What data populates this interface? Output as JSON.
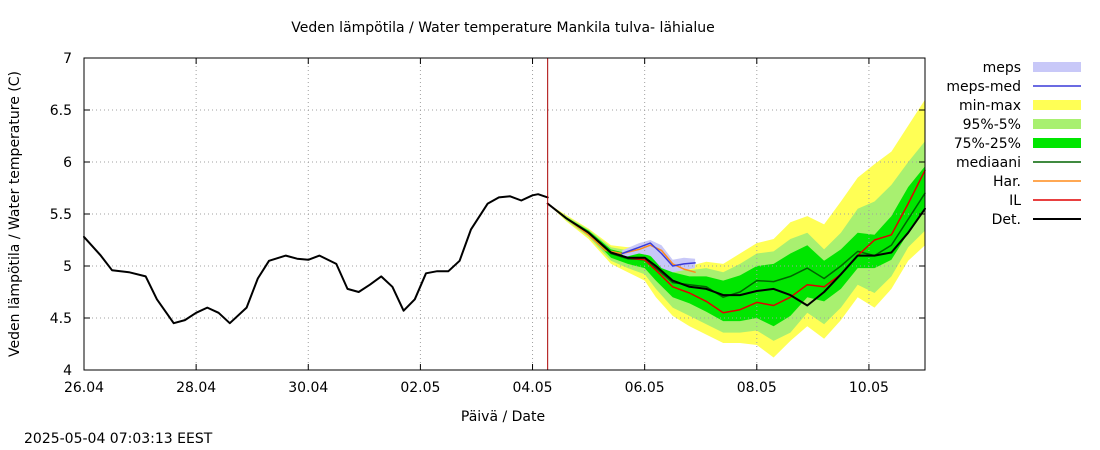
{
  "timestamp": "2025-05-04 07:03:13 EEST",
  "chart_data": {
    "type": "area",
    "title": "Veden lämpötila / Water temperature Mankila tulva- lähialue",
    "xlabel": "Päivä / Date",
    "ylabel": "Veden lämpötila / Water temperature (C)",
    "xlim": [
      0,
      15
    ],
    "ylim": [
      4,
      7
    ],
    "grid": true,
    "legend_position": "right",
    "x_ticks": [
      {
        "x": 0,
        "label": "26.04"
      },
      {
        "x": 2,
        "label": "28.04"
      },
      {
        "x": 4,
        "label": "30.04"
      },
      {
        "x": 6,
        "label": "02.05"
      },
      {
        "x": 8,
        "label": "04.05"
      },
      {
        "x": 10,
        "label": "06.05"
      },
      {
        "x": 12,
        "label": "08.05"
      },
      {
        "x": 14,
        "label": "10.05"
      }
    ],
    "y_ticks": [
      {
        "y": 4,
        "label": "4"
      },
      {
        "y": 4.5,
        "label": "4.5"
      },
      {
        "y": 5,
        "label": "5"
      },
      {
        "y": 5.5,
        "label": "5.5"
      },
      {
        "y": 6,
        "label": "6"
      },
      {
        "y": 6.5,
        "label": "6.5"
      },
      {
        "y": 7,
        "label": "7"
      }
    ],
    "now_line_x": 8.27,
    "colors": {
      "meps": "#c8c8f8",
      "meps_med": "#3a3ad8",
      "min_max": "#ffff55",
      "p95_5": "#a8f070",
      "p75_25": "#00e600",
      "mediaani": "#006400",
      "har": "#ff8c1a",
      "il": "#e00000",
      "det": "#000000",
      "now_line": "#aa0000",
      "grid": "#a0a0a0"
    },
    "legend": [
      {
        "key": "meps",
        "label": "meps",
        "style": "band"
      },
      {
        "key": "meps_med",
        "label": "meps-med",
        "style": "line"
      },
      {
        "key": "min_max",
        "label": "min-max",
        "style": "band"
      },
      {
        "key": "p95_5",
        "label": "95%-5%",
        "style": "band"
      },
      {
        "key": "p75_25",
        "label": "75%-25%",
        "style": "band"
      },
      {
        "key": "mediaani",
        "label": "mediaani",
        "style": "line"
      },
      {
        "key": "har",
        "label": "Har.",
        "style": "line"
      },
      {
        "key": "il",
        "label": "IL",
        "style": "line"
      },
      {
        "key": "det",
        "label": "Det.",
        "style": "line"
      }
    ],
    "series": {
      "observed": {
        "x": [
          0,
          0.3,
          0.5,
          0.8,
          1.1,
          1.3,
          1.6,
          1.8,
          2.0,
          2.2,
          2.4,
          2.6,
          2.9,
          3.1,
          3.3,
          3.6,
          3.8,
          4.0,
          4.2,
          4.5,
          4.7,
          4.9,
          5.1,
          5.3,
          5.5,
          5.7,
          5.9,
          6.1,
          6.3,
          6.5,
          6.7,
          6.9,
          7.2,
          7.4,
          7.6,
          7.8,
          8.0,
          8.1,
          8.27
        ],
        "y": [
          5.28,
          5.1,
          4.96,
          4.94,
          4.9,
          4.68,
          4.45,
          4.48,
          4.55,
          4.6,
          4.55,
          4.45,
          4.6,
          4.88,
          5.05,
          5.1,
          5.07,
          5.06,
          5.1,
          5.02,
          4.78,
          4.75,
          4.82,
          4.9,
          4.8,
          4.57,
          4.68,
          4.93,
          4.95,
          4.95,
          5.05,
          5.35,
          5.6,
          5.66,
          5.67,
          5.63,
          5.68,
          5.69,
          5.66
        ]
      },
      "det": {
        "x": [
          8.27,
          8.6,
          9.0,
          9.4,
          9.7,
          10.0,
          10.2,
          10.5,
          10.8,
          11.1,
          11.4,
          11.7,
          12.0,
          12.3,
          12.6,
          12.9,
          13.2,
          13.5,
          13.8,
          14.1,
          14.4,
          14.7,
          15.0
        ],
        "y": [
          5.6,
          5.46,
          5.32,
          5.13,
          5.08,
          5.08,
          5.0,
          4.86,
          4.8,
          4.78,
          4.72,
          4.72,
          4.76,
          4.78,
          4.72,
          4.62,
          4.75,
          4.92,
          5.1,
          5.1,
          5.13,
          5.32,
          5.55
        ]
      },
      "mediaani": {
        "x": [
          8.27,
          8.6,
          9.0,
          9.4,
          9.7,
          10.0,
          10.2,
          10.5,
          10.8,
          11.1,
          11.4,
          11.7,
          12.0,
          12.3,
          12.6,
          12.9,
          13.2,
          13.5,
          13.8,
          14.1,
          14.4,
          14.7,
          15.0
        ],
        "y": [
          5.6,
          5.46,
          5.32,
          5.12,
          5.07,
          5.06,
          4.98,
          4.84,
          4.82,
          4.8,
          4.7,
          4.75,
          4.86,
          4.85,
          4.9,
          4.98,
          4.88,
          5.0,
          5.14,
          5.1,
          5.2,
          5.45,
          5.7
        ]
      },
      "il": {
        "x": [
          8.27,
          8.6,
          9.0,
          9.4,
          9.7,
          10.0,
          10.2,
          10.5,
          10.8,
          11.1,
          11.4,
          11.7,
          12.0,
          12.3,
          12.6,
          12.9,
          13.2,
          13.5,
          13.8,
          14.1,
          14.4,
          14.7,
          15.0
        ],
        "y": [
          5.6,
          5.46,
          5.32,
          5.13,
          5.08,
          5.06,
          4.96,
          4.8,
          4.74,
          4.66,
          4.55,
          4.58,
          4.65,
          4.62,
          4.7,
          4.82,
          4.8,
          4.92,
          5.1,
          5.25,
          5.3,
          5.6,
          5.92
        ]
      },
      "har": {
        "x": [
          8.27,
          8.6,
          9.0,
          9.3,
          9.6,
          9.9,
          10.1,
          10.3,
          10.5,
          10.7,
          10.9
        ],
        "y": [
          5.6,
          5.46,
          5.3,
          5.15,
          5.12,
          5.16,
          5.2,
          5.15,
          5.02,
          4.97,
          4.94
        ]
      },
      "meps_med": {
        "x": [
          9.6,
          9.9,
          10.1,
          10.3,
          10.5,
          10.7,
          10.9
        ],
        "y": [
          5.12,
          5.18,
          5.22,
          5.12,
          5.0,
          5.02,
          5.03
        ]
      },
      "meps_band": {
        "x": [
          9.6,
          9.9,
          10.1,
          10.3,
          10.5,
          10.7,
          10.9
        ],
        "low": [
          5.08,
          5.12,
          5.1,
          4.98,
          4.94,
          4.96,
          4.98
        ],
        "high": [
          5.15,
          5.22,
          5.25,
          5.2,
          5.06,
          5.08,
          5.07
        ]
      },
      "p75_25_band": {
        "x": [
          8.27,
          8.6,
          9.0,
          9.4,
          9.7,
          10.0,
          10.2,
          10.5,
          10.8,
          11.1,
          11.4,
          11.7,
          12.0,
          12.3,
          12.6,
          12.9,
          13.2,
          13.5,
          13.8,
          14.1,
          14.4,
          14.7,
          15.0
        ],
        "low": [
          5.6,
          5.45,
          5.3,
          5.08,
          5.02,
          4.98,
          4.86,
          4.7,
          4.64,
          4.56,
          4.47,
          4.47,
          4.5,
          4.42,
          4.52,
          4.7,
          4.66,
          4.78,
          4.98,
          4.98,
          5.06,
          5.32,
          5.55
        ],
        "high": [
          5.6,
          5.47,
          5.34,
          5.16,
          5.12,
          5.12,
          5.07,
          4.94,
          4.9,
          4.9,
          4.86,
          4.91,
          5.0,
          5.02,
          5.12,
          5.2,
          5.05,
          5.16,
          5.32,
          5.3,
          5.48,
          5.76,
          5.96
        ]
      },
      "p95_5_band": {
        "x": [
          8.27,
          8.6,
          9.0,
          9.4,
          9.7,
          10.0,
          10.2,
          10.5,
          10.8,
          11.1,
          11.4,
          11.7,
          12.0,
          12.3,
          12.6,
          12.9,
          13.2,
          13.5,
          13.8,
          14.1,
          14.4,
          14.7,
          15.0
        ],
        "low": [
          5.6,
          5.44,
          5.28,
          5.05,
          4.98,
          4.92,
          4.78,
          4.6,
          4.52,
          4.44,
          4.36,
          4.36,
          4.38,
          4.28,
          4.36,
          4.55,
          4.44,
          4.6,
          4.82,
          4.74,
          4.9,
          5.18,
          5.34
        ],
        "high": [
          5.6,
          5.48,
          5.35,
          5.18,
          5.15,
          5.16,
          5.12,
          5.0,
          4.96,
          4.98,
          4.94,
          5.02,
          5.12,
          5.14,
          5.26,
          5.32,
          5.16,
          5.32,
          5.55,
          5.62,
          5.78,
          6.0,
          6.2
        ]
      },
      "min_max_band": {
        "x": [
          8.27,
          8.6,
          9.0,
          9.4,
          9.7,
          10.0,
          10.2,
          10.5,
          10.8,
          11.1,
          11.4,
          11.7,
          12.0,
          12.3,
          12.6,
          12.9,
          13.2,
          13.5,
          13.8,
          14.1,
          14.4,
          14.7,
          15.0
        ],
        "low": [
          5.6,
          5.43,
          5.26,
          5.02,
          4.94,
          4.86,
          4.7,
          4.52,
          4.42,
          4.34,
          4.26,
          4.26,
          4.24,
          4.12,
          4.28,
          4.42,
          4.3,
          4.48,
          4.7,
          4.6,
          4.78,
          5.05,
          5.2
        ],
        "high": [
          5.6,
          5.49,
          5.36,
          5.2,
          5.18,
          5.2,
          5.16,
          5.04,
          5.0,
          5.04,
          5.02,
          5.12,
          5.22,
          5.26,
          5.42,
          5.48,
          5.4,
          5.62,
          5.85,
          5.98,
          6.1,
          6.35,
          6.6
        ]
      }
    }
  }
}
